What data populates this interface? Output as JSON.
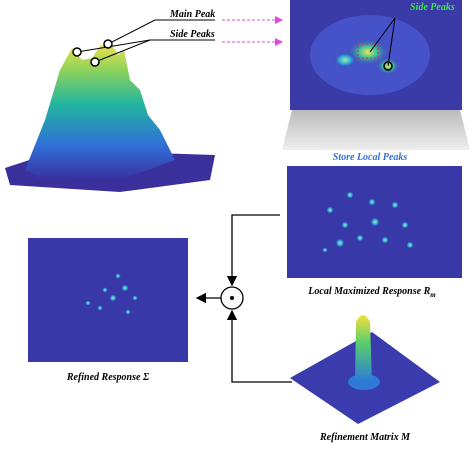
{
  "labels": {
    "main_peak": "Main Peak",
    "side_peaks": "Side Peaks",
    "side_peaks_map": "Side Peaks",
    "store_local_peaks": "Store Local Peaks",
    "local_response": {
      "text": "Local Maximized Response R",
      "subscript": "m"
    },
    "refined_response": "Refined Response Σ",
    "refinement_matrix": "Refinement Matrix M"
  }
}
